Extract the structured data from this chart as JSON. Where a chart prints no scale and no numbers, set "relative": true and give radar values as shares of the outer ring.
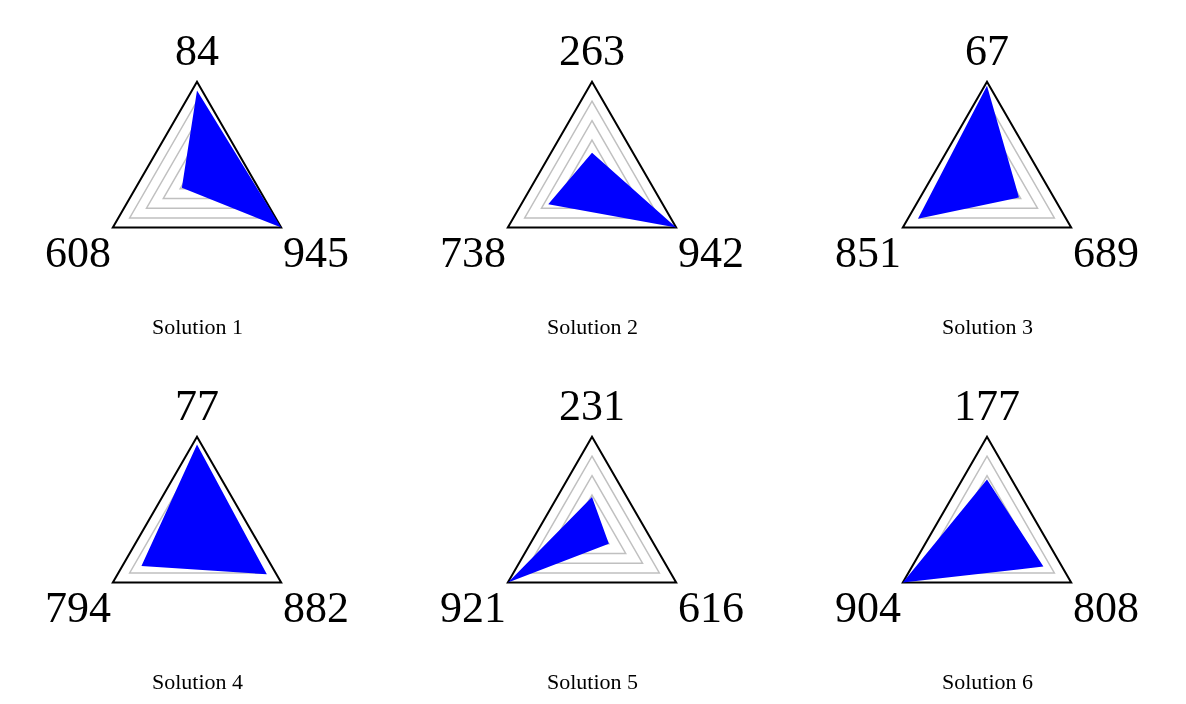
{
  "chart_data": [
    {
      "type": "radar",
      "relative": true,
      "title": "Solution 1",
      "categories": [
        "84",
        "945",
        "608"
      ],
      "grid": true,
      "legend": false,
      "series": [
        {
          "color": "#0000ff",
          "values": [
            0.91,
            1.0,
            0.18
          ]
        }
      ]
    },
    {
      "type": "radar",
      "relative": true,
      "title": "Solution 2",
      "categories": [
        "263",
        "942",
        "738"
      ],
      "grid": true,
      "legend": false,
      "series": [
        {
          "color": "#0000ff",
          "values": [
            0.27,
            1.0,
            0.52
          ]
        }
      ]
    },
    {
      "type": "radar",
      "relative": true,
      "title": "Solution 3",
      "categories": [
        "67",
        "689",
        "851"
      ],
      "grid": true,
      "legend": false,
      "series": [
        {
          "color": "#0000ff",
          "values": [
            0.96,
            0.38,
            0.82
          ]
        }
      ]
    },
    {
      "type": "radar",
      "relative": true,
      "title": "Solution 4",
      "categories": [
        "77",
        "882",
        "794"
      ],
      "grid": true,
      "legend": false,
      "series": [
        {
          "color": "#0000ff",
          "values": [
            0.92,
            0.83,
            0.66
          ]
        }
      ]
    },
    {
      "type": "radar",
      "relative": true,
      "title": "Solution 5",
      "categories": [
        "231",
        "616",
        "921"
      ],
      "grid": true,
      "legend": false,
      "series": [
        {
          "color": "#0000ff",
          "values": [
            0.38,
            0.2,
            1.0
          ]
        }
      ]
    },
    {
      "type": "radar",
      "relative": true,
      "title": "Solution 6",
      "categories": [
        "177",
        "808",
        "904"
      ],
      "grid": true,
      "legend": false,
      "series": [
        {
          "color": "#0000ff",
          "values": [
            0.56,
            0.67,
            1.0
          ]
        }
      ]
    }
  ]
}
